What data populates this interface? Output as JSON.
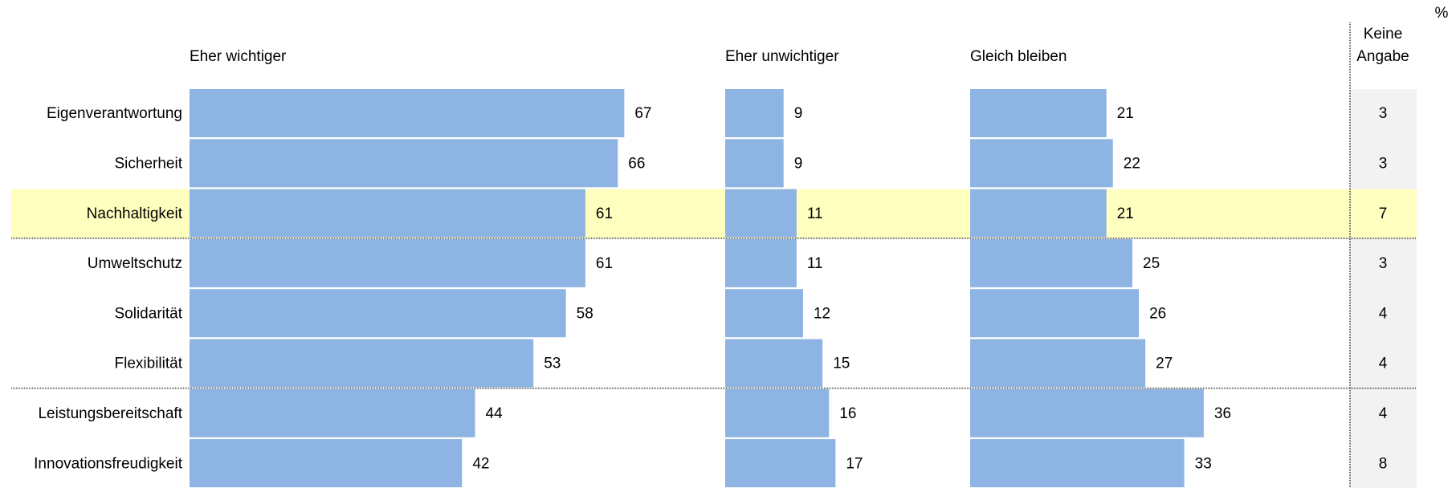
{
  "chart_data": {
    "type": "bar",
    "orientation": "horizontal",
    "unit": "%",
    "categories": [
      "Eigenverantwortung",
      "Sicherheit",
      "Nachhaltigkeit",
      "Umweltschutz",
      "Solidarität",
      "Flexibilität",
      "Leistungsbereitschaft",
      "Innovationsfreudigkeit"
    ],
    "series": [
      {
        "name": "Eher wichtiger",
        "color": "#8eb4e3",
        "values": [
          67,
          66,
          61,
          61,
          58,
          53,
          44,
          42
        ]
      },
      {
        "name": "Eher unwichtiger",
        "color": "#8eb4e3",
        "values": [
          9,
          9,
          11,
          11,
          12,
          15,
          16,
          17
        ]
      },
      {
        "name": "Gleich bleiben",
        "color": "#8eb4e3",
        "values": [
          21,
          22,
          21,
          25,
          26,
          27,
          36,
          33
        ]
      }
    ],
    "extra_column": {
      "name": "Keine Angabe",
      "values": [
        3,
        3,
        7,
        3,
        4,
        4,
        4,
        8
      ],
      "background": "#f2f2f2"
    },
    "highlight": 2,
    "highlight_color": "#ffffc0",
    "group_breaks": [
      3,
      6
    ]
  }
}
